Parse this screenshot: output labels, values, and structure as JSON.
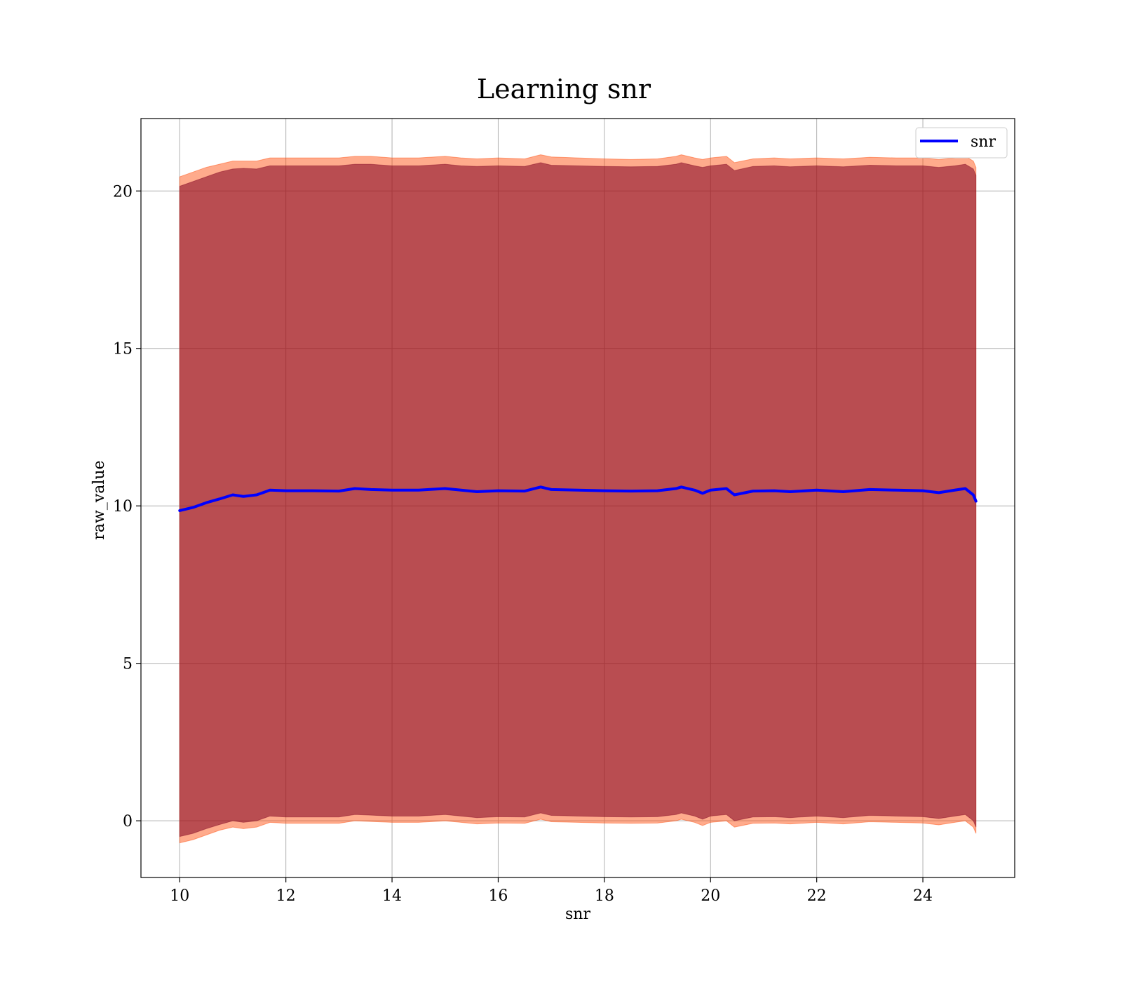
{
  "chart_data": {
    "type": "line",
    "title": "Learning snr",
    "xlabel": "snr",
    "ylabel": "raw_value",
    "xlim": [
      9.27,
      25.73
    ],
    "ylim": [
      -1.8,
      22.3
    ],
    "x_ticks": [
      10,
      12,
      14,
      16,
      18,
      20,
      22,
      24
    ],
    "y_ticks": [
      0,
      5,
      10,
      15,
      20
    ],
    "grid": true,
    "legend": {
      "position": "top-right",
      "entries": [
        "snr"
      ]
    },
    "series": [
      {
        "name": "snr",
        "color": "#0000ff",
        "x": [
          10.0,
          10.25,
          10.5,
          10.75,
          11.0,
          11.2,
          11.45,
          11.7,
          12.0,
          12.5,
          13.0,
          13.3,
          13.6,
          14.0,
          14.5,
          15.0,
          15.3,
          15.6,
          16.0,
          16.5,
          16.8,
          17.0,
          17.5,
          18.0,
          18.5,
          19.0,
          19.35,
          19.45,
          19.7,
          19.85,
          20.0,
          20.3,
          20.45,
          20.8,
          21.2,
          21.5,
          22.0,
          22.5,
          23.0,
          23.5,
          24.0,
          24.3,
          24.6,
          24.8,
          24.95,
          25.0
        ],
        "y": [
          9.85,
          9.95,
          10.1,
          10.22,
          10.35,
          10.3,
          10.35,
          10.5,
          10.48,
          10.48,
          10.47,
          10.55,
          10.52,
          10.5,
          10.5,
          10.55,
          10.5,
          10.45,
          10.48,
          10.47,
          10.6,
          10.52,
          10.5,
          10.48,
          10.47,
          10.48,
          10.55,
          10.6,
          10.5,
          10.4,
          10.5,
          10.55,
          10.35,
          10.47,
          10.48,
          10.45,
          10.5,
          10.45,
          10.52,
          10.5,
          10.48,
          10.42,
          10.5,
          10.55,
          10.35,
          10.15
        ]
      }
    ],
    "band_inner": {
      "color": "#800020",
      "upper": [
        20.15,
        20.3,
        20.45,
        20.6,
        20.7,
        20.72,
        20.7,
        20.8,
        20.8,
        20.8,
        20.8,
        20.85,
        20.85,
        20.8,
        20.8,
        20.85,
        20.8,
        20.78,
        20.8,
        20.78,
        20.9,
        20.82,
        20.8,
        20.78,
        20.77,
        20.78,
        20.85,
        20.9,
        20.8,
        20.75,
        20.8,
        20.85,
        20.65,
        20.78,
        20.8,
        20.77,
        20.8,
        20.77,
        20.82,
        20.8,
        20.8,
        20.75,
        20.8,
        20.85,
        20.7,
        20.5
      ],
      "lower": [
        -0.5,
        -0.4,
        -0.25,
        -0.12,
        0.0,
        -0.05,
        0.0,
        0.15,
        0.12,
        0.12,
        0.12,
        0.2,
        0.18,
        0.15,
        0.15,
        0.2,
        0.15,
        0.1,
        0.13,
        0.12,
        0.25,
        0.17,
        0.15,
        0.13,
        0.12,
        0.13,
        0.2,
        0.25,
        0.15,
        0.05,
        0.15,
        0.2,
        0.0,
        0.12,
        0.13,
        0.1,
        0.15,
        0.1,
        0.17,
        0.15,
        0.13,
        0.07,
        0.15,
        0.2,
        0.0,
        -0.2
      ]
    },
    "band_outer": {
      "color": "#ff4500",
      "upper": [
        20.45,
        20.6,
        20.75,
        20.85,
        20.95,
        20.95,
        20.95,
        21.05,
        21.05,
        21.05,
        21.05,
        21.1,
        21.1,
        21.05,
        21.05,
        21.1,
        21.05,
        21.02,
        21.05,
        21.02,
        21.15,
        21.08,
        21.05,
        21.02,
        21.0,
        21.02,
        21.1,
        21.15,
        21.05,
        21.0,
        21.05,
        21.1,
        20.9,
        21.02,
        21.05,
        21.02,
        21.05,
        21.02,
        21.07,
        21.05,
        21.05,
        21.0,
        21.05,
        21.1,
        20.95,
        20.75
      ],
      "lower": [
        -0.7,
        -0.6,
        -0.45,
        -0.3,
        -0.2,
        -0.25,
        -0.2,
        -0.05,
        -0.08,
        -0.08,
        -0.08,
        0.0,
        -0.02,
        -0.05,
        -0.05,
        0.0,
        -0.05,
        -0.1,
        -0.07,
        -0.08,
        0.05,
        -0.03,
        -0.05,
        -0.07,
        -0.08,
        -0.07,
        0.0,
        0.05,
        -0.05,
        -0.15,
        -0.05,
        0.0,
        -0.2,
        -0.08,
        -0.07,
        -0.1,
        -0.05,
        -0.1,
        -0.03,
        -0.05,
        -0.07,
        -0.13,
        -0.05,
        0.0,
        -0.2,
        -0.4
      ]
    }
  }
}
